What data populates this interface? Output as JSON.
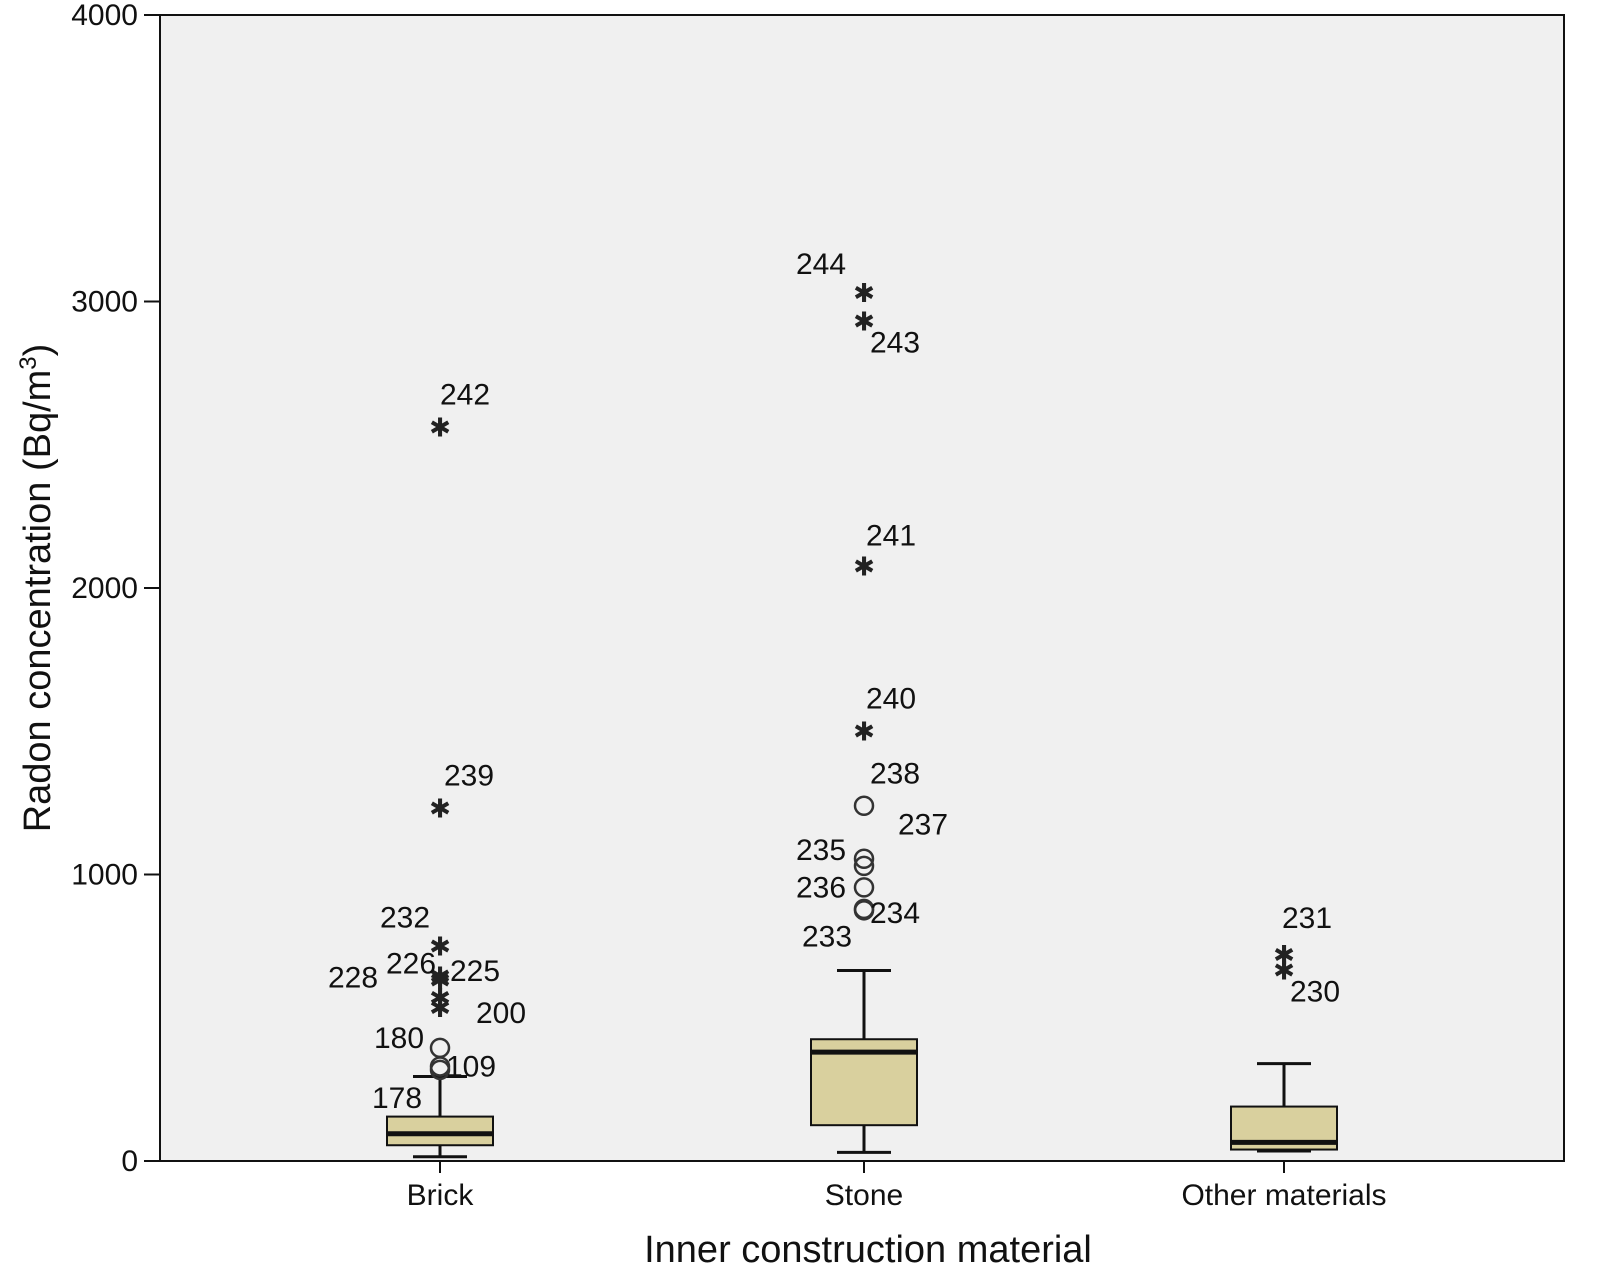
{
  "chart_data": {
    "type": "boxplot",
    "xlabel": "Inner construction material",
    "ylabel": "Radon concentration (Bq/m",
    "ylabel_sup": "3",
    "ylabel_end": ")",
    "ylim": [
      0,
      4000
    ],
    "yticks": [
      0,
      1000,
      2000,
      3000,
      4000
    ],
    "grid": false,
    "colors": {
      "plot_bg": "#f0f0f0",
      "box_fill": "#d9d09e",
      "line": "#111111"
    },
    "categories": [
      "Brick",
      "Stone",
      "Other materials"
    ],
    "boxes": [
      {
        "category": "Brick",
        "whisker_low": 15,
        "q1": 55,
        "median": 95,
        "q3": 155,
        "whisker_high": 295,
        "outliers": [
          {
            "label": "178",
            "value": 318,
            "marker": "circle"
          },
          {
            "label": "109",
            "value": 330,
            "marker": "circle"
          },
          {
            "label": "180",
            "value": 395,
            "marker": "circle"
          },
          {
            "label": "200",
            "value": 545,
            "marker": "star"
          },
          {
            "label": "225",
            "value": 580,
            "marker": "star"
          },
          {
            "label": "226",
            "value": 655,
            "marker": "star"
          },
          {
            "label": "228",
            "value": 640,
            "marker": "star"
          },
          {
            "label": "232",
            "value": 760,
            "marker": "star"
          },
          {
            "label": "239",
            "value": 1240,
            "marker": "star"
          },
          {
            "label": "242",
            "value": 2570,
            "marker": "star"
          }
        ]
      },
      {
        "category": "Stone",
        "whisker_low": 30,
        "q1": 125,
        "median": 380,
        "q3": 425,
        "whisker_high": 665,
        "outliers": [
          {
            "label": "233",
            "value": 875,
            "marker": "circle"
          },
          {
            "label": "234",
            "value": 880,
            "marker": "circle"
          },
          {
            "label": "236",
            "value": 955,
            "marker": "circle"
          },
          {
            "label": "235",
            "value": 1030,
            "marker": "circle"
          },
          {
            "label": "237",
            "value": 1055,
            "marker": "circle"
          },
          {
            "label": "238",
            "value": 1240,
            "marker": "circle"
          },
          {
            "label": "240",
            "value": 1510,
            "marker": "star"
          },
          {
            "label": "241",
            "value": 2085,
            "marker": "star"
          },
          {
            "label": "243",
            "value": 2940,
            "marker": "star"
          },
          {
            "label": "244",
            "value": 3040,
            "marker": "star"
          }
        ]
      },
      {
        "category": "Other materials",
        "whisker_low": 35,
        "q1": 40,
        "median": 65,
        "q3": 190,
        "whisker_high": 340,
        "outliers": [
          {
            "label": "230",
            "value": 675,
            "marker": "star"
          },
          {
            "label": "231",
            "value": 730,
            "marker": "star"
          }
        ]
      }
    ]
  }
}
